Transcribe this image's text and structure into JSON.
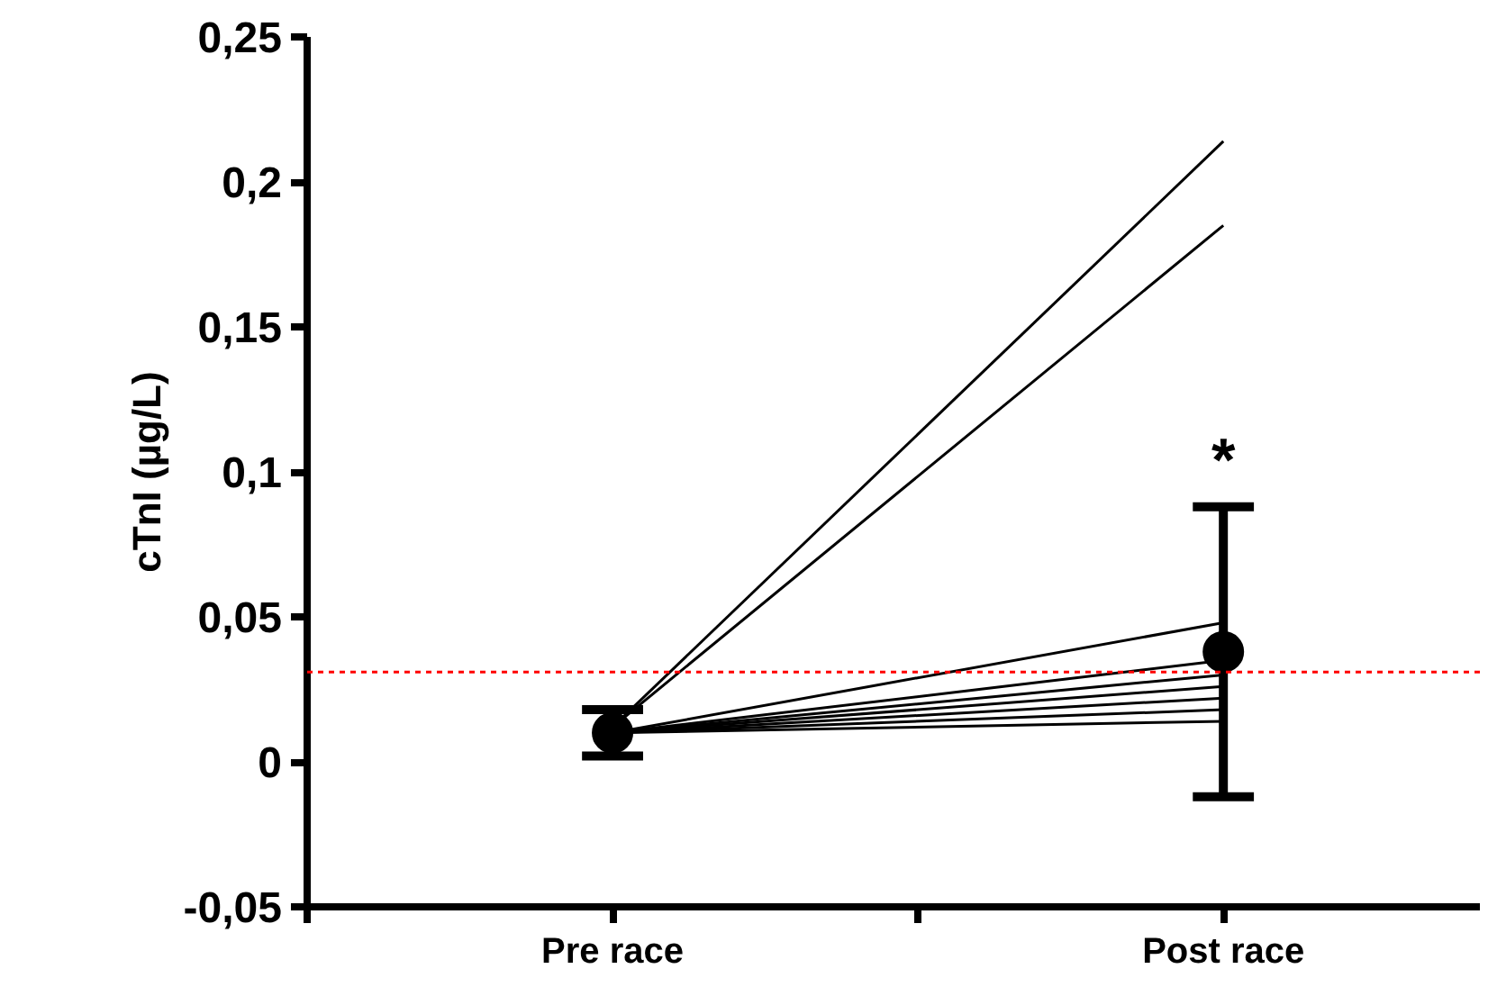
{
  "chart_data": {
    "type": "line",
    "ylabel": "cTnI (µg/L)",
    "categories": [
      "Pre race",
      "Post race"
    ],
    "ylim": [
      -0.05,
      0.25
    ],
    "yticks": [
      {
        "value": -0.05,
        "label": "-0,05"
      },
      0,
      {
        "value": 0.05,
        "label": "0,05"
      },
      {
        "value": 0.1,
        "label": "0,1"
      },
      {
        "value": 0.15,
        "label": "0,15"
      },
      {
        "value": 0.2,
        "label": "0,2"
      },
      {
        "value": 0.25,
        "label": "0,25"
      }
    ],
    "series": [
      {
        "color": "#000000",
        "values": [
          0.012,
          0.214
        ]
      },
      {
        "color": "#000000",
        "values": [
          0.012,
          0.185
        ]
      },
      {
        "color": "#000000",
        "values": [
          0.01,
          0.048
        ]
      },
      {
        "color": "#000000",
        "values": [
          0.01,
          0.035
        ]
      },
      {
        "color": "#000000",
        "values": [
          0.01,
          0.03
        ]
      },
      {
        "color": "#000000",
        "values": [
          0.01,
          0.026
        ]
      },
      {
        "color": "#000000",
        "values": [
          0.01,
          0.022
        ]
      },
      {
        "color": "#000000",
        "values": [
          0.01,
          0.018
        ]
      },
      {
        "color": "#000000",
        "values": [
          0.01,
          0.014
        ]
      },
      {
        "type": "scatter",
        "color": "#000000",
        "marker": "circle",
        "values": [
          0.01,
          0.038
        ],
        "errors": [
          0.008,
          0.05
        ]
      }
    ],
    "ref_lines": [
      {
        "axis": "y",
        "value": 0.031,
        "color": "#ff0000",
        "line_style": "dotted"
      }
    ],
    "annotations": [
      {
        "text": "*",
        "x": "Post race",
        "y": 0.092
      }
    ],
    "line_style": "solid",
    "marker": "none",
    "grid": false
  }
}
